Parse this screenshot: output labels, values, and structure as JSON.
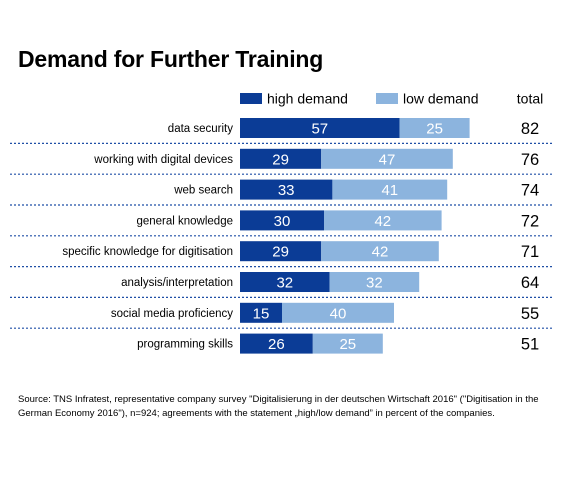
{
  "chart_data": {
    "type": "bar",
    "stacked": true,
    "orientation": "horizontal",
    "title": "Demand for Further Training",
    "categories": [
      "data security",
      "working with digital devices",
      "web search",
      "general knowledge",
      "specific knowledge for digitisation",
      "analysis/interpretation",
      "social media proficiency",
      "programming skills"
    ],
    "series": [
      {
        "name": "high demand",
        "values": [
          57,
          29,
          33,
          30,
          29,
          32,
          15,
          26
        ],
        "color": "#0b3c96"
      },
      {
        "name": "low demand",
        "values": [
          25,
          47,
          41,
          42,
          42,
          32,
          40,
          25
        ],
        "color": "#8cb4de"
      }
    ],
    "totals_label": "total",
    "totals": [
      82,
      76,
      74,
      72,
      71,
      64,
      55,
      51
    ],
    "legend_position": "top",
    "grid": false,
    "xlim": [
      0,
      100
    ]
  },
  "source_text": "Source: TNS Infratest, representative company survey \"Digitalisierung in der deutschen Wirtschaft 2016\" (\"Digitisation in the German Economy 2016\"), n=924; agreements with the statement „high/low demand” in percent of the companies."
}
